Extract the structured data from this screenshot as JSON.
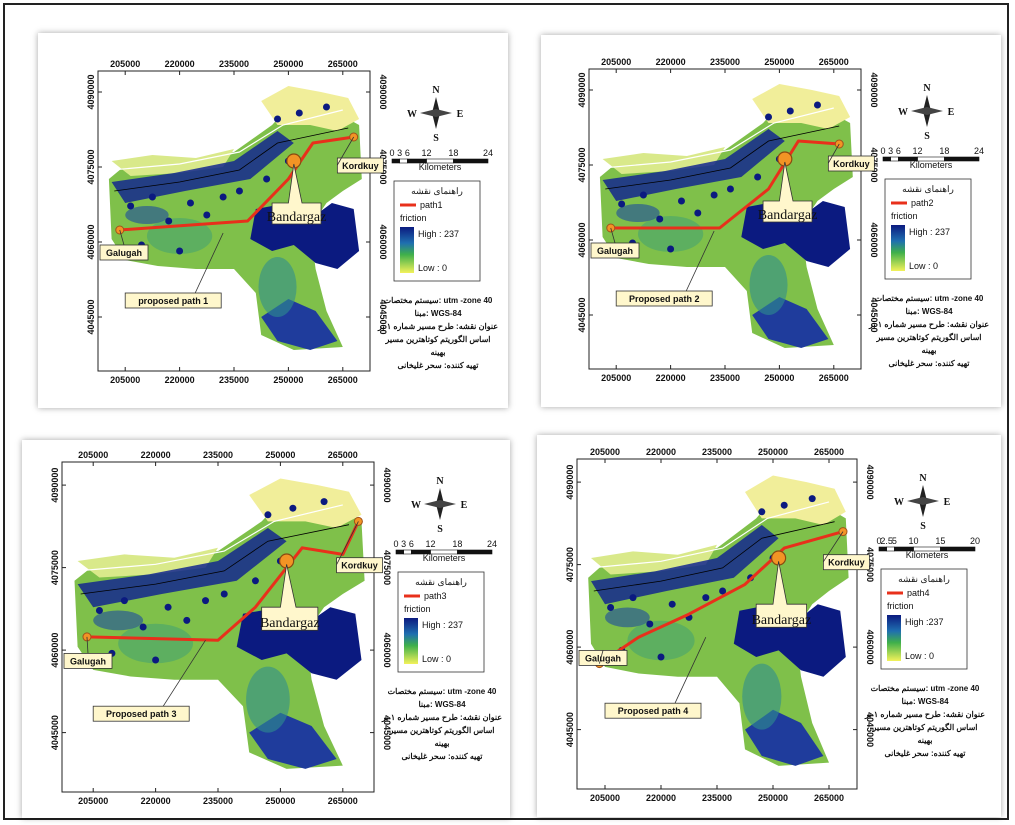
{
  "x_ticks": [
    "205000",
    "220000",
    "235000",
    "250000",
    "265000"
  ],
  "y_ticks": [
    "4090000",
    "4075000",
    "4060000",
    "4045000"
  ],
  "compass": {
    "n": "N",
    "s": "S",
    "e": "E",
    "w": "W"
  },
  "scale_unit": "Kilometers",
  "legend": {
    "title": "راهنمای نقشه",
    "friction": "friction",
    "high": "High : 237",
    "low": "Low : 0"
  },
  "towns": {
    "bandargaz": "Bandargaz",
    "kordkuy": "Kordkuy",
    "galugah": "Galugah"
  },
  "info_lines": [
    "سیستم مختصات: utm -zone 40",
    "مبنا: WGS-84",
    "عنوان نقشه: طرح مسیر شماره ۱ بر",
    "اساس الگوریتم کوتاهترین مسیر",
    "بهینه",
    "تهیه کننده: سحر غلیخانی"
  ],
  "panels": [
    {
      "path_label": "path1",
      "callout": "proposed path 1",
      "scale_ticks": [
        "0",
        "3",
        "6",
        "12",
        "18",
        "24"
      ],
      "high": "High : 237",
      "low": "Low : 0",
      "route": [
        [
          0.08,
          0.53
        ],
        [
          0.55,
          0.5
        ],
        [
          0.7,
          0.36
        ],
        [
          0.79,
          0.24
        ],
        [
          0.94,
          0.22
        ]
      ]
    },
    {
      "path_label": "path2",
      "callout": "Proposed path 2",
      "scale_ticks": [
        "0",
        "3",
        "6",
        "12",
        "18",
        "24"
      ],
      "high": "High : 237",
      "low": "Low : 0",
      "route": [
        [
          0.08,
          0.53
        ],
        [
          0.48,
          0.53
        ],
        [
          0.66,
          0.4
        ],
        [
          0.77,
          0.24
        ],
        [
          0.92,
          0.25
        ]
      ]
    },
    {
      "path_label": "path3",
      "callout": "Proposed path 3",
      "scale_ticks": [
        "0",
        "3",
        "6",
        "12",
        "18",
        "24"
      ],
      "high": "High : 237",
      "low": "Low : 0",
      "route": [
        [
          0.08,
          0.53
        ],
        [
          0.5,
          0.54
        ],
        [
          0.62,
          0.44
        ],
        [
          0.77,
          0.26
        ],
        [
          0.9,
          0.28
        ],
        [
          0.95,
          0.18
        ]
      ]
    },
    {
      "path_label": "path4",
      "callout": "Proposed path 4",
      "scale_ticks": [
        "0",
        "2.5",
        "5",
        "10",
        "15",
        "20"
      ],
      "high": "High :237",
      "low": "Low : 0",
      "route": [
        [
          0.08,
          0.62
        ],
        [
          0.22,
          0.54
        ],
        [
          0.4,
          0.47
        ],
        [
          0.6,
          0.38
        ],
        [
          0.74,
          0.27
        ],
        [
          0.95,
          0.22
        ]
      ]
    }
  ]
}
